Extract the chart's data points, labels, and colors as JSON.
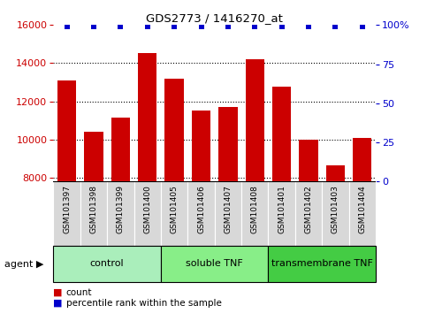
{
  "title": "GDS2773 / 1416270_at",
  "samples": [
    "GSM101397",
    "GSM101398",
    "GSM101399",
    "GSM101400",
    "GSM101405",
    "GSM101406",
    "GSM101407",
    "GSM101408",
    "GSM101401",
    "GSM101402",
    "GSM101403",
    "GSM101404"
  ],
  "counts": [
    13100,
    10400,
    11150,
    14550,
    13200,
    11500,
    11700,
    14200,
    12750,
    10000,
    8650,
    10100
  ],
  "percentile": [
    99,
    99,
    99,
    99,
    99,
    99,
    99,
    99,
    99,
    99,
    99,
    99
  ],
  "bar_color": "#cc0000",
  "dot_color": "#0000cc",
  "ylim_left": [
    7800,
    16000
  ],
  "ylim_right": [
    0,
    100
  ],
  "yticks_left": [
    8000,
    10000,
    12000,
    14000,
    16000
  ],
  "yticks_right": [
    0,
    25,
    50,
    75,
    100
  ],
  "groups": [
    {
      "label": "control",
      "start": 0,
      "end": 4,
      "color": "#aaeebb"
    },
    {
      "label": "soluble TNF",
      "start": 4,
      "end": 8,
      "color": "#88ee88"
    },
    {
      "label": "transmembrane TNF",
      "start": 8,
      "end": 12,
      "color": "#44cc44"
    }
  ],
  "agent_label": "agent",
  "legend_count_label": "count",
  "legend_percentile_label": "percentile rank within the sample",
  "tick_label_bg": "#d8d8d8",
  "fig_width": 4.83,
  "fig_height": 3.54,
  "dpi": 100
}
